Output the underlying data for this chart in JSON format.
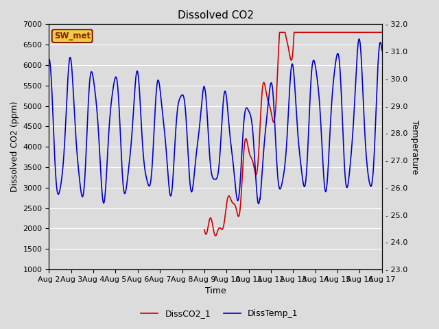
{
  "title": "Dissolved CO2",
  "xlabel": "Time",
  "ylabel_left": "Dissolved CO2 (ppm)",
  "ylabel_right": "Temperature",
  "ylim_left": [
    1000,
    7000
  ],
  "ylim_right": [
    23.0,
    32.0
  ],
  "bg_color": "#dcdcdc",
  "legend_label_co2": "DissCO2_1",
  "legend_label_temp": "DissTemp_1",
  "co2_color": "#cc0000",
  "temp_color": "#0000cc",
  "label_box_text": "SW_met",
  "label_box_facecolor": "#eecc44",
  "label_box_edgecolor": "#882200",
  "xtick_labels": [
    "Aug 2",
    "Aug 3",
    "Aug 4",
    "Aug 5",
    "Aug 6",
    "Aug 7",
    "Aug 8",
    "Aug 9",
    "Aug 10",
    "Aug 11",
    "Aug 12",
    "Aug 13",
    "Aug 14",
    "Aug 15",
    "Aug 16",
    "Aug 17"
  ],
  "grid_color": "#ffffff",
  "linewidth": 1.2,
  "title_fontsize": 11,
  "axis_fontsize": 9,
  "tick_fontsize": 8,
  "legend_fontsize": 9
}
